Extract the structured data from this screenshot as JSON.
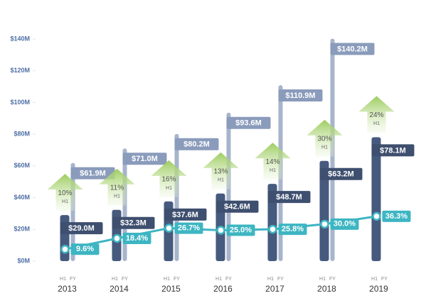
{
  "chart_data": {
    "type": "bar",
    "categories": [
      "2013",
      "2014",
      "2015",
      "2016",
      "2017",
      "2018",
      "2019"
    ],
    "series": [
      {
        "name": "H1",
        "color": "#465a7e",
        "label_color": "#3e4f6f",
        "values": [
          29.0,
          32.3,
          37.6,
          42.6,
          48.7,
          63.2,
          78.1
        ],
        "value_labels": [
          "$29.0M",
          "$32.3M",
          "$37.6M",
          "$42.6M",
          "$48.7M",
          "$63.2M",
          "$78.1M"
        ]
      },
      {
        "name": "FY",
        "color": "#a7b4cc",
        "label_color": "#8a9bbb",
        "values": [
          61.9,
          71.0,
          80.2,
          93.6,
          110.9,
          140.2,
          null
        ],
        "value_labels": [
          "$61.9M",
          "$71.0M",
          "$80.2M",
          "$93.6M",
          "$110.9M",
          "$140.2M",
          null
        ]
      }
    ],
    "growth": {
      "color": "#9ccc5e",
      "values": [
        10,
        11,
        16,
        13,
        14,
        30,
        24
      ],
      "value_labels": [
        "10%",
        "11%",
        "16%",
        "13%",
        "14%",
        "30%",
        "24%"
      ]
    },
    "margin": {
      "color": "#3db5c2",
      "axis": "y2",
      "values": [
        9.6,
        18.4,
        26.7,
        25.0,
        25.8,
        30.0,
        36.3
      ],
      "value_labels": [
        "9.6%",
        "18.4%",
        "26.7%",
        "25.0%",
        "25.8%",
        "30.0%",
        "36.3%"
      ]
    },
    "ylim": [
      0,
      140
    ],
    "yticks": [
      {
        "value": 0,
        "label": "$0M"
      },
      {
        "value": 20,
        "label": "$20M"
      },
      {
        "value": 40,
        "label": "$40M"
      },
      {
        "value": 60,
        "label": "$60M"
      },
      {
        "value": 80,
        "label": "$80M"
      },
      {
        "value": 100,
        "label": "$100M"
      },
      {
        "value": 120,
        "label": "$120M"
      },
      {
        "value": 140,
        "label": "$140M"
      }
    ],
    "y2lim": [
      0,
      180
    ]
  }
}
